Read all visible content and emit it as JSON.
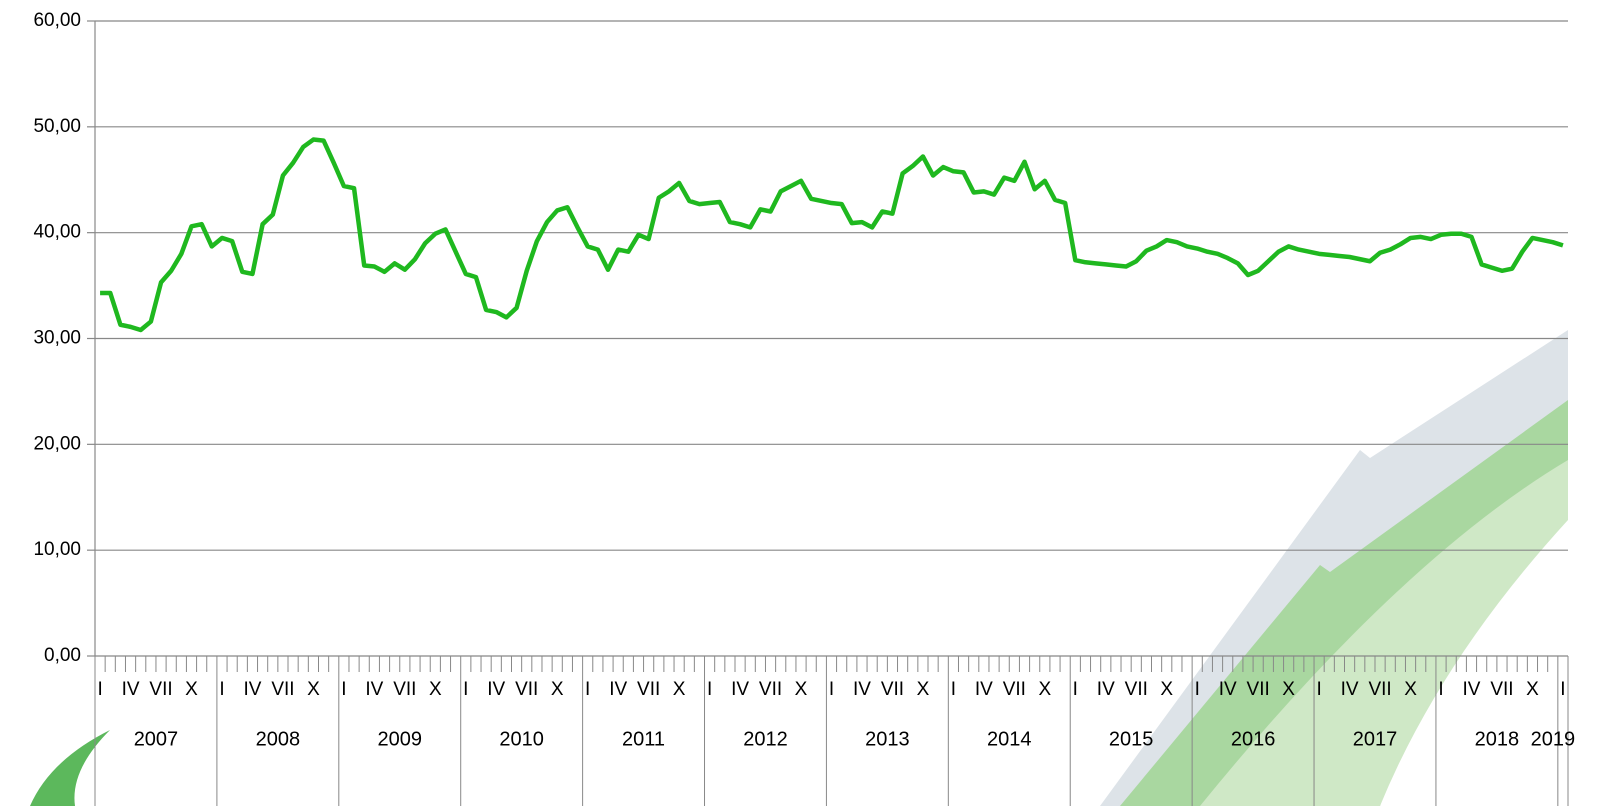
{
  "chart_data": {
    "type": "line",
    "categories": [
      "I",
      null,
      null,
      "IV",
      null,
      null,
      "VII",
      null,
      null,
      "X",
      null,
      null,
      "I",
      null,
      null,
      "IV",
      null,
      null,
      "VII",
      null,
      null,
      "X",
      null,
      null,
      "I",
      null,
      null,
      "IV",
      null,
      null,
      "VII",
      null,
      null,
      "X",
      null,
      null,
      "I",
      null,
      null,
      "IV",
      null,
      null,
      "VII",
      null,
      null,
      "X",
      null,
      null,
      "I",
      null,
      null,
      "IV",
      null,
      null,
      "VII",
      null,
      null,
      "X",
      null,
      null,
      "I",
      null,
      null,
      "IV",
      null,
      null,
      "VII",
      null,
      null,
      "X",
      null,
      null,
      "I",
      null,
      null,
      "IV",
      null,
      null,
      "VII",
      null,
      null,
      "X",
      null,
      null,
      "I",
      null,
      null,
      "IV",
      null,
      null,
      "VII",
      null,
      null,
      "X",
      null,
      null,
      "I",
      null,
      null,
      "IV",
      null,
      null,
      "VII",
      null,
      null,
      "X",
      null,
      null,
      "I",
      null,
      null,
      "IV",
      null,
      null,
      "VII",
      null,
      null,
      "X",
      null,
      null,
      "I",
      null,
      null,
      "IV",
      null,
      null,
      "VII",
      null,
      null,
      "X",
      null,
      null,
      "I",
      null,
      null,
      "IV",
      null,
      null,
      "VII",
      null,
      null,
      "X",
      null,
      null,
      "I"
    ],
    "years": [
      "2007",
      "2008",
      "2009",
      "2010",
      "2011",
      "2012",
      "2013",
      "2014",
      "2015",
      "2016",
      "2017",
      "2018",
      "2019"
    ],
    "series": [
      {
        "color": "#1fb81f",
        "values": [
          34.3,
          34.3,
          31.3,
          31.1,
          30.8,
          31.6,
          35.3,
          36.4,
          38.0,
          40.6,
          40.8,
          38.7,
          39.5,
          39.2,
          36.3,
          36.1,
          40.8,
          41.7,
          45.4,
          46.6,
          48.1,
          48.8,
          48.7,
          46.6,
          44.4,
          44.2,
          36.9,
          36.8,
          36.3,
          37.1,
          36.5,
          37.5,
          39.0,
          39.9,
          40.3,
          38.2,
          36.1,
          35.8,
          32.7,
          32.5,
          32.0,
          32.9,
          36.4,
          39.2,
          41.0,
          42.1,
          42.4,
          40.5,
          38.7,
          38.4,
          36.5,
          38.4,
          38.2,
          39.8,
          39.4,
          43.3,
          43.9,
          44.7,
          43.0,
          42.7,
          42.8,
          42.9,
          41.0,
          40.8,
          40.5,
          42.2,
          42.0,
          43.9,
          44.4,
          44.9,
          43.2,
          43.0,
          42.8,
          42.7,
          40.9,
          41.0,
          40.5,
          42.0,
          41.8,
          45.6,
          46.3,
          47.2,
          45.4,
          46.2,
          45.8,
          45.7,
          43.8,
          43.9,
          43.6,
          45.2,
          44.9,
          46.7,
          44.1,
          44.9,
          43.1,
          42.8,
          37.4,
          37.2,
          37.1,
          37.0,
          36.9,
          36.8,
          37.3,
          38.3,
          38.7,
          39.3,
          39.1,
          38.7,
          38.5,
          38.2,
          38.0,
          37.6,
          37.1,
          36.0,
          36.4,
          37.3,
          38.2,
          38.7,
          38.4,
          38.2,
          38.0,
          37.9,
          37.8,
          37.7,
          37.5,
          37.3,
          38.1,
          38.4,
          38.9,
          39.5,
          39.6,
          39.4,
          39.8,
          39.9,
          39.9,
          39.6,
          37.0,
          36.7,
          36.4,
          36.6,
          38.2,
          39.5,
          39.3,
          39.1,
          38.8
        ]
      }
    ],
    "ylim": [
      0,
      60
    ],
    "yticks": [
      {
        "value": 0,
        "label": "0,00"
      },
      {
        "value": 10,
        "label": "10,00"
      },
      {
        "value": 20,
        "label": "20,00"
      },
      {
        "value": 30,
        "label": "30,00"
      },
      {
        "value": 40,
        "label": "40,00"
      },
      {
        "value": 50,
        "label": "50,00"
      },
      {
        "value": 60,
        "label": "60,00"
      }
    ],
    "grid": true
  }
}
